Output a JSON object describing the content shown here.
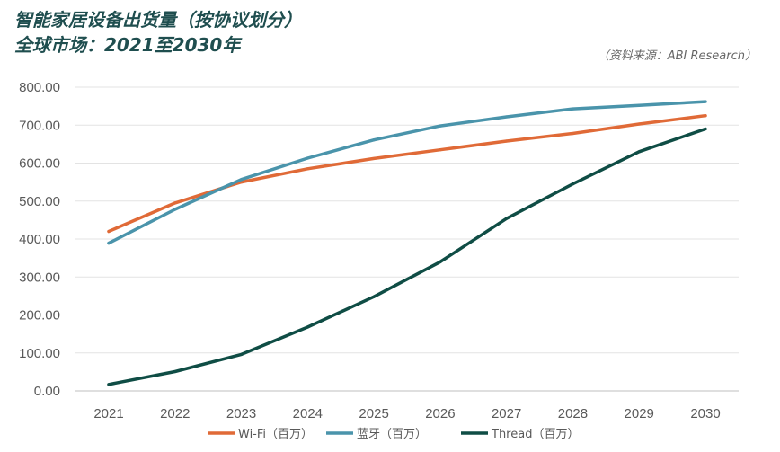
{
  "chart_data": {
    "type": "line",
    "title": "智能家居设备出货量（按协议划分）",
    "subtitle": "全球市场：2021至2030年",
    "source": "（资料来源：ABI Research）",
    "xlabel": "",
    "ylabel": "",
    "categories": [
      "2021",
      "2022",
      "2023",
      "2024",
      "2025",
      "2026",
      "2027",
      "2028",
      "2029",
      "2030"
    ],
    "ylim": [
      0,
      800
    ],
    "yticks": [
      0,
      100,
      200,
      300,
      400,
      500,
      600,
      700,
      800
    ],
    "ytick_labels": [
      "0.00",
      "100.00",
      "200.00",
      "300.00",
      "400.00",
      "500.00",
      "600.00",
      "700.00",
      "800.00"
    ],
    "grid": true,
    "legend_position": "bottom",
    "series": [
      {
        "name": "Wi-Fi（百万）",
        "color": "#e06a37",
        "values": [
          420,
          495,
          550,
          585,
          612,
          635,
          658,
          678,
          703,
          725
        ]
      },
      {
        "name": "蓝牙（百万）",
        "color": "#4a94ab",
        "values": [
          389,
          478,
          557,
          613,
          661,
          698,
          722,
          743,
          752,
          762
        ]
      },
      {
        "name": "Thread（百万）",
        "color": "#0f4d45",
        "values": [
          17,
          51,
          96,
          168,
          248,
          340,
          454,
          545,
          630,
          690
        ]
      }
    ]
  }
}
